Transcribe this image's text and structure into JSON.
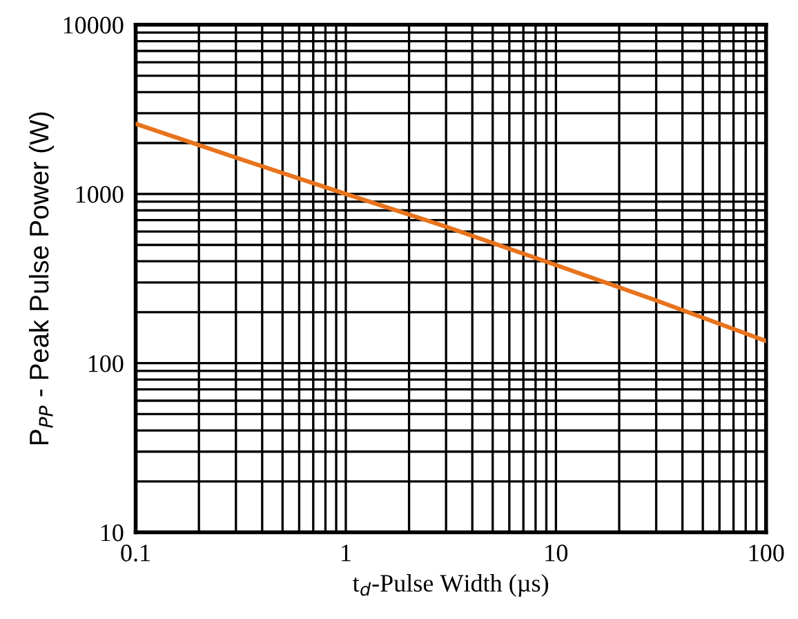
{
  "chart_data": {
    "type": "line",
    "xlabel": "t$_{d}$-Pulse Width (µs)",
    "ylabel": "P$_{PP}$ - Peak Pulse Power (W)",
    "log": "xy",
    "x": [
      0.1,
      0.3,
      1,
      3,
      10,
      30,
      100
    ],
    "series": [
      {
        "color": "#e8731c",
        "values": [
          2600,
          1640,
          1000,
          640,
          380,
          235,
          135
        ]
      }
    ],
    "xlim": [
      0.1,
      100
    ],
    "xticks": [
      0.1,
      1,
      10,
      100
    ],
    "ylim": [
      10,
      10000
    ],
    "yticks": [
      10,
      100,
      1000,
      10000
    ],
    "grid": true,
    "marker": "none",
    "line_style": "solid"
  }
}
